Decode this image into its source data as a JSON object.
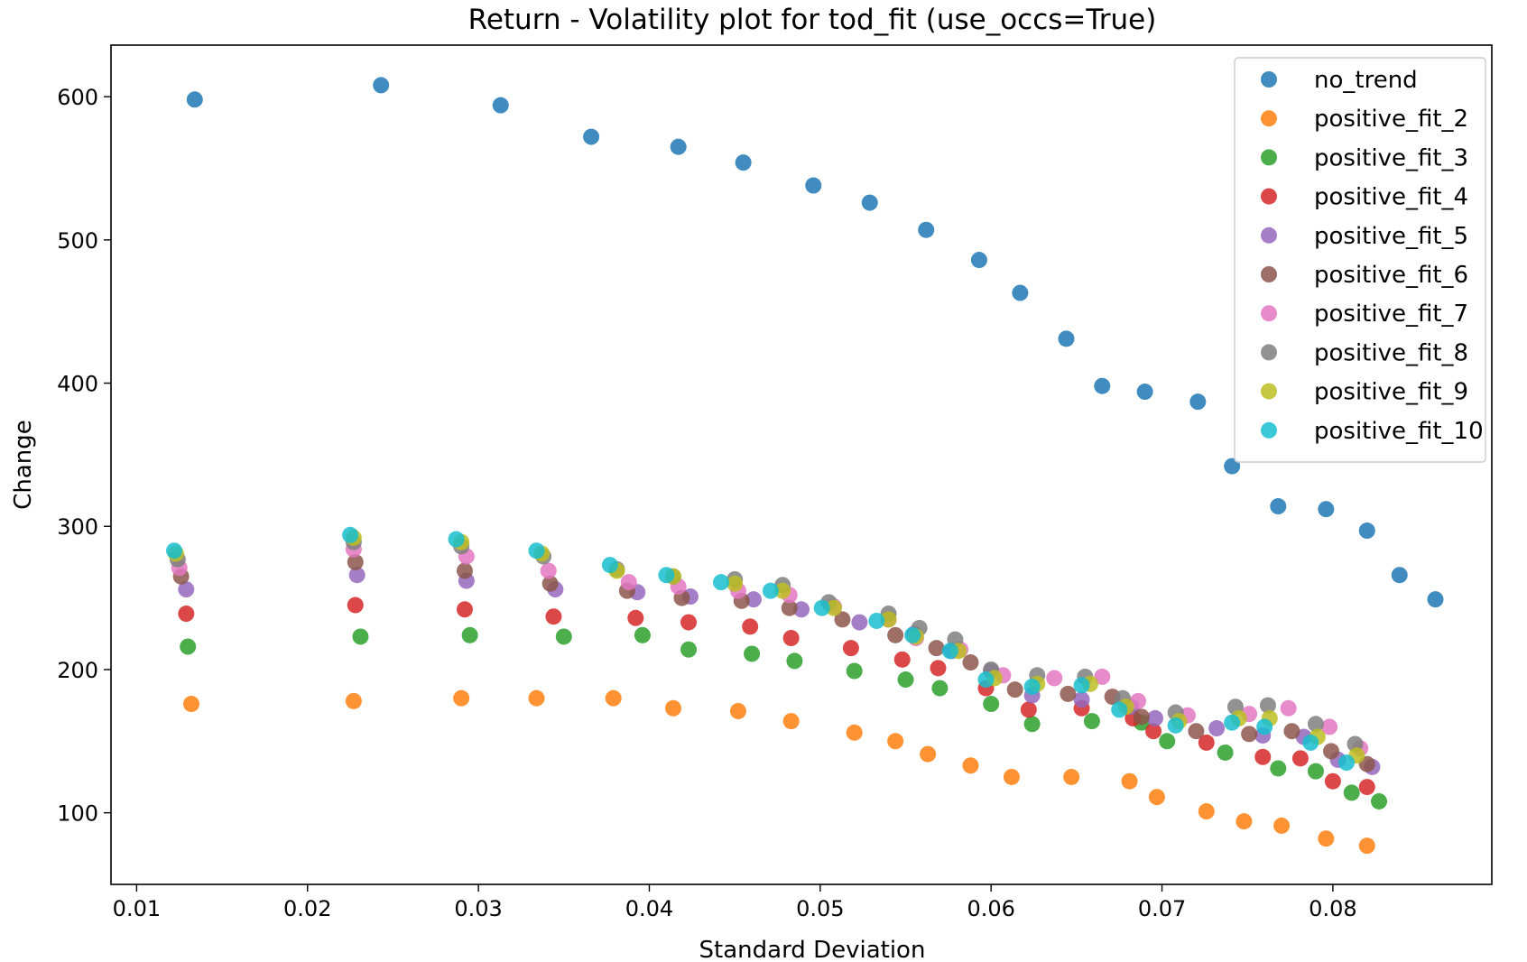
{
  "chart_data": {
    "type": "scatter",
    "title": "Return - Volatility plot for tod_fit (use_occs=True)",
    "xlabel": "Standard Deviation",
    "ylabel": "Change",
    "xlim": [
      0.0085,
      0.0893
    ],
    "ylim": [
      50,
      636
    ],
    "xticks": [
      0.01,
      0.02,
      0.03,
      0.04,
      0.05,
      0.06,
      0.07,
      0.08
    ],
    "xtick_labels": [
      "0.01",
      "0.02",
      "0.03",
      "0.04",
      "0.05",
      "0.06",
      "0.07",
      "0.08"
    ],
    "yticks": [
      100,
      200,
      300,
      400,
      500,
      600
    ],
    "ytick_labels": [
      "100",
      "200",
      "300",
      "400",
      "500",
      "600"
    ],
    "grid": false,
    "legend_position": "top-right",
    "series": [
      {
        "name": "no_trend",
        "color": "#1f77b4",
        "x": [
          0.0134,
          0.0243,
          0.0313,
          0.0366,
          0.0417,
          0.0455,
          0.0496,
          0.0529,
          0.0562,
          0.0593,
          0.0617,
          0.0644,
          0.0665,
          0.069,
          0.0721,
          0.0741,
          0.0768,
          0.0796,
          0.082,
          0.0839,
          0.086
        ],
        "y": [
          598,
          608,
          594,
          572,
          565,
          554,
          538,
          526,
          507,
          486,
          463,
          431,
          398,
          394,
          387,
          342,
          314,
          312,
          297,
          266,
          249
        ]
      },
      {
        "name": "positive_fit_2",
        "color": "#ff7f0e",
        "x": [
          0.0132,
          0.0227,
          0.029,
          0.0334,
          0.0379,
          0.0414,
          0.0452,
          0.0483,
          0.052,
          0.0544,
          0.0563,
          0.0588,
          0.0612,
          0.0647,
          0.0681,
          0.0697,
          0.0726,
          0.0748,
          0.077,
          0.0796,
          0.082
        ],
        "y": [
          176,
          178,
          180,
          180,
          180,
          173,
          171,
          164,
          156,
          150,
          141,
          133,
          125,
          125,
          122,
          111,
          101,
          94,
          91,
          82,
          77
        ]
      },
      {
        "name": "positive_fit_3",
        "color": "#2ca02c",
        "x": [
          0.013,
          0.0231,
          0.0295,
          0.035,
          0.0396,
          0.0423,
          0.046,
          0.0485,
          0.052,
          0.055,
          0.057,
          0.06,
          0.0624,
          0.0659,
          0.0688,
          0.0703,
          0.0737,
          0.0768,
          0.079,
          0.0811,
          0.0827
        ],
        "y": [
          216,
          223,
          224,
          223,
          224,
          214,
          211,
          206,
          199,
          193,
          187,
          176,
          162,
          164,
          163,
          150,
          142,
          131,
          129,
          114,
          108
        ]
      },
      {
        "name": "positive_fit_4",
        "color": "#d62728",
        "x": [
          0.0129,
          0.0228,
          0.0292,
          0.0344,
          0.0392,
          0.0423,
          0.0459,
          0.0483,
          0.0518,
          0.0548,
          0.0569,
          0.0597,
          0.0622,
          0.0653,
          0.0683,
          0.0695,
          0.0726,
          0.0759,
          0.0781,
          0.08,
          0.082
        ],
        "y": [
          239,
          245,
          242,
          237,
          236,
          233,
          230,
          222,
          215,
          207,
          201,
          187,
          172,
          173,
          166,
          157,
          149,
          139,
          138,
          122,
          118
        ]
      },
      {
        "name": "positive_fit_5",
        "color": "#9467bd",
        "x": [
          0.0129,
          0.0229,
          0.0293,
          0.0345,
          0.0393,
          0.0424,
          0.0461,
          0.0489,
          0.0523,
          0.0555,
          0.0577,
          0.06,
          0.0624,
          0.0653,
          0.0682,
          0.0696,
          0.0732,
          0.0759,
          0.0783,
          0.0803,
          0.0823
        ],
        "y": [
          256,
          266,
          262,
          256,
          254,
          251,
          249,
          242,
          233,
          225,
          213,
          199,
          182,
          179,
          174,
          166,
          159,
          154,
          153,
          137,
          132
        ]
      },
      {
        "name": "positive_fit_6",
        "color": "#8c564b",
        "x": [
          0.0126,
          0.0228,
          0.0292,
          0.0342,
          0.0387,
          0.0419,
          0.0454,
          0.0482,
          0.0513,
          0.0544,
          0.0568,
          0.0588,
          0.0614,
          0.0645,
          0.0671,
          0.0688,
          0.072,
          0.0751,
          0.0776,
          0.0799,
          0.082
        ],
        "y": [
          265,
          275,
          269,
          260,
          255,
          250,
          248,
          243,
          235,
          224,
          215,
          205,
          186,
          183,
          181,
          167,
          157,
          155,
          157,
          143,
          134
        ]
      },
      {
        "name": "positive_fit_7",
        "color": "#e377c2",
        "x": [
          0.0125,
          0.0227,
          0.0293,
          0.0341,
          0.0388,
          0.0417,
          0.0452,
          0.0482,
          0.0508,
          0.054,
          0.0556,
          0.0582,
          0.0607,
          0.0637,
          0.0665,
          0.0686,
          0.0715,
          0.0751,
          0.0774,
          0.0798,
          0.0816
        ],
        "y": [
          271,
          284,
          279,
          269,
          261,
          258,
          255,
          252,
          244,
          235,
          222,
          214,
          196,
          194,
          195,
          178,
          168,
          169,
          173,
          160,
          145
        ]
      },
      {
        "name": "positive_fit_8",
        "color": "#7f7f7f",
        "x": [
          0.0124,
          0.0227,
          0.029,
          0.0338,
          0.0381,
          0.0414,
          0.045,
          0.0478,
          0.0505,
          0.054,
          0.0558,
          0.0579,
          0.06,
          0.0627,
          0.0655,
          0.0677,
          0.0708,
          0.0743,
          0.0762,
          0.079,
          0.0813
        ],
        "y": [
          277,
          289,
          286,
          279,
          270,
          265,
          263,
          259,
          247,
          239,
          229,
          221,
          200,
          196,
          195,
          180,
          170,
          174,
          175,
          162,
          148
        ]
      },
      {
        "name": "positive_fit_9",
        "color": "#bcbd22",
        "x": [
          0.0123,
          0.0227,
          0.029,
          0.0337,
          0.0381,
          0.0414,
          0.045,
          0.0478,
          0.0508,
          0.054,
          0.0556,
          0.0581,
          0.0602,
          0.0627,
          0.0658,
          0.0679,
          0.071,
          0.0745,
          0.0763,
          0.0791,
          0.0814
        ],
        "y": [
          281,
          292,
          289,
          281,
          269,
          265,
          260,
          255,
          243,
          235,
          223,
          213,
          194,
          190,
          190,
          174,
          164,
          166,
          166,
          153,
          140
        ]
      },
      {
        "name": "positive_fit_10",
        "color": "#17becf",
        "x": [
          0.0122,
          0.0225,
          0.0287,
          0.0334,
          0.0377,
          0.041,
          0.0442,
          0.0471,
          0.0501,
          0.0533,
          0.0554,
          0.0576,
          0.0597,
          0.0624,
          0.0653,
          0.0675,
          0.0708,
          0.0741,
          0.076,
          0.0787,
          0.0808
        ],
        "y": [
          283,
          294,
          291,
          283,
          273,
          266,
          261,
          255,
          243,
          234,
          224,
          213,
          193,
          188,
          189,
          172,
          161,
          163,
          160,
          149,
          135
        ]
      }
    ]
  }
}
